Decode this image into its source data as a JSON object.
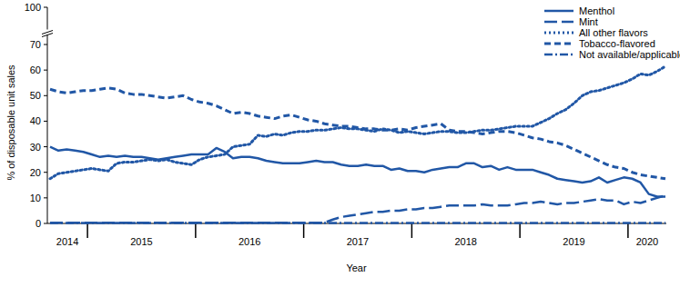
{
  "chart_data": {
    "type": "line",
    "x_label": "Year",
    "y_label": "% of disposable unit sales",
    "categories": [
      "2014",
      null,
      null,
      null,
      null,
      "2015",
      null,
      null,
      null,
      null,
      null,
      null,
      null,
      null,
      null,
      null,
      null,
      null,
      "2016",
      null,
      null,
      null,
      null,
      null,
      null,
      null,
      null,
      null,
      null,
      null,
      null,
      "2017",
      null,
      null,
      null,
      null,
      null,
      null,
      null,
      null,
      null,
      null,
      null,
      null,
      "2018",
      null,
      null,
      null,
      null,
      null,
      null,
      null,
      null,
      null,
      null,
      null,
      null,
      "2019",
      null,
      null,
      null,
      null,
      null,
      null,
      null,
      null,
      null,
      null,
      null,
      null,
      "2020",
      null,
      null,
      null,
      null
    ],
    "ylim": [
      0,
      100
    ],
    "yticks": [
      0,
      10,
      20,
      30,
      40,
      50,
      60,
      70,
      100
    ],
    "legend": "top-right",
    "grid": false,
    "series": [
      {
        "name": "Menthol",
        "color": "#2157a6",
        "line_style": "solid",
        "values": [
          30,
          28.5,
          29,
          28.5,
          28,
          27,
          26,
          26.5,
          26,
          26.5,
          26,
          26,
          25.5,
          25,
          25.5,
          26,
          26.5,
          27,
          27,
          27,
          29.5,
          28,
          25.5,
          26,
          26,
          25.5,
          24.5,
          24,
          23.5,
          23.5,
          23.5,
          24,
          24.5,
          24,
          24,
          23,
          22.5,
          22.5,
          23,
          22.5,
          22.5,
          21,
          21.5,
          20.5,
          20.5,
          20,
          21,
          21.5,
          22,
          22,
          23.5,
          23.5,
          22,
          22.5,
          21,
          22,
          21,
          21,
          21,
          20,
          19,
          17.5,
          17,
          16.5,
          16,
          16.5,
          18,
          16,
          17,
          18,
          17.5,
          16,
          11.5,
          10.5,
          10.5
        ]
      },
      {
        "name": "Mint",
        "color": "#2157a6",
        "line_style": "long-dash",
        "values": [
          0.3,
          0.3,
          0.3,
          0.3,
          0.3,
          0.3,
          0.3,
          0.3,
          0.3,
          0.3,
          0.3,
          0.3,
          0.3,
          0.3,
          0.3,
          0.3,
          0.3,
          0.3,
          0.3,
          0.3,
          0.3,
          0.3,
          0.3,
          0.3,
          0.3,
          0.3,
          0.3,
          0.3,
          0.3,
          0.3,
          0.3,
          0.3,
          0.3,
          0.3,
          1.5,
          2.5,
          3,
          3.5,
          4,
          4.5,
          4.5,
          5,
          5,
          5.5,
          5.5,
          6,
          6,
          6.5,
          7,
          7,
          7,
          7,
          7.5,
          7,
          7,
          7,
          7.5,
          8,
          8,
          8.5,
          8,
          7.5,
          8,
          8,
          8.5,
          9,
          9.5,
          9,
          9,
          7.5,
          8.5,
          8,
          9,
          10,
          11
        ]
      },
      {
        "name": "All other flavors",
        "color": "#2157a6",
        "line_style": "dotted",
        "values": [
          17.5,
          19.5,
          20,
          20.5,
          21,
          21.5,
          21,
          20.5,
          23.5,
          24,
          24,
          24.5,
          25,
          24.5,
          25,
          24,
          23.5,
          23,
          25,
          26,
          26.5,
          27,
          30,
          30.5,
          31,
          34.5,
          34,
          35,
          34.5,
          35.5,
          36,
          36,
          36.5,
          36.5,
          37,
          37.5,
          37,
          37,
          36.5,
          36,
          37,
          36.5,
          35.5,
          36,
          35.5,
          35,
          35.5,
          36,
          36,
          35.5,
          35.5,
          36,
          36.5,
          36.5,
          37,
          37.5,
          38,
          38,
          38,
          39.5,
          41,
          43,
          44.5,
          47,
          50,
          51.5,
          52,
          53,
          54,
          55,
          56.5,
          58.5,
          58,
          59.5,
          61.5
        ]
      },
      {
        "name": "Tobacco-flavored",
        "color": "#2157a6",
        "line_style": "dashed",
        "values": [
          52.5,
          51.5,
          51,
          51.5,
          52,
          52,
          52.5,
          53,
          52.5,
          51,
          50.5,
          50.5,
          50,
          49.5,
          49,
          49.5,
          50,
          48.5,
          47.5,
          47,
          46,
          44.5,
          43,
          43.5,
          43,
          42,
          41.5,
          41,
          42,
          42.5,
          41.5,
          40.5,
          40,
          39,
          38.5,
          38,
          38,
          37.5,
          37,
          37,
          36.5,
          36.5,
          37,
          36.5,
          37.5,
          38,
          38.5,
          39,
          36.5,
          36,
          36,
          35.5,
          35,
          35.5,
          36,
          36,
          35.5,
          34.5,
          33.5,
          33,
          32,
          31.5,
          30.5,
          29,
          27.5,
          26,
          24.5,
          23,
          22,
          21.5,
          20,
          19,
          18.5,
          18,
          17.5
        ]
      },
      {
        "name": "Not available/applicable",
        "color": "#2157a6",
        "line_style": "dash-dot",
        "values": [
          0.2,
          0.2,
          0.2,
          0.2,
          0.2,
          0.2,
          0.2,
          0.2,
          0.2,
          0.2,
          0.2,
          0.2,
          0.2,
          0.2,
          0.2,
          0.2,
          0.2,
          0.2,
          0.2,
          0.2,
          0.2,
          0.2,
          0.2,
          0.2,
          0.2,
          0.2,
          0.2,
          0.2,
          0.2,
          0.2,
          0.2,
          0.2,
          0.2,
          0.2,
          0.2,
          0.2,
          0.2,
          0.2,
          0.2,
          0.2,
          0.2,
          0.2,
          0.2,
          0.2,
          0.2,
          0.2,
          0.2,
          0.2,
          0.2,
          0.2,
          0.2,
          0.2,
          0.2,
          0.2,
          0.2,
          0.2,
          0.2,
          0.2,
          0.2,
          0.2,
          0.2,
          0.2,
          0.2,
          0.2,
          0.2,
          0.2,
          0.2,
          0.2,
          0.2,
          0.2,
          0.2,
          0.2,
          0.2,
          0.2,
          0.2
        ]
      }
    ]
  }
}
